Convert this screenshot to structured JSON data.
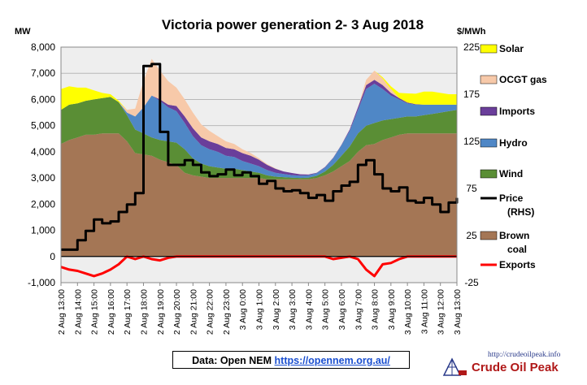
{
  "chart_data": {
    "type": "area",
    "title": "Victoria  power generation  2- 3 Aug 2018",
    "ylabel_left": "MW",
    "ylabel_right": "$/MWh",
    "ylim_left": [
      -1000,
      8000
    ],
    "yticks_left": [
      "8,000",
      "7,000",
      "6,000",
      "5,000",
      "4,000",
      "3,000",
      "2,000",
      "1,000",
      "0",
      "-1,000"
    ],
    "ylim_right": [
      -25,
      225
    ],
    "yticks_right": [
      "225",
      "175",
      "125",
      "75",
      "25",
      "-25"
    ],
    "x_start_hour": 13,
    "x_end_hour": 37,
    "xtick_labels": [
      "2 Aug 13:00",
      "2 Aug 14:00",
      "2 Aug 15:00",
      "2 Aug 16:00",
      "2 Aug 17:00",
      "2 Aug 18:00",
      "2 Aug 19:00",
      "2 Aug 20:00",
      "2 Aug 21:00",
      "2 Aug 22:00",
      "2 Aug 23:00",
      "3 Aug 0:00",
      "3 Aug 1:00",
      "3 Aug 2:00",
      "3 Aug 3:00",
      "3 Aug 4:00",
      "3 Aug 5:00",
      "3 Aug 6:00",
      "3 Aug 7:00",
      "3 Aug 8:00",
      "3 Aug 9:00",
      "3 Aug 10:00",
      "3 Aug 11:00",
      "3 Aug 12:00",
      "3 Aug 13:00"
    ],
    "grid": true,
    "legend_position": "right",
    "x": [
      13,
      13.5,
      14,
      14.5,
      15,
      15.5,
      16,
      16.5,
      17,
      17.5,
      18,
      18.5,
      19,
      19.5,
      20,
      20.5,
      21,
      21.5,
      22,
      22.5,
      23,
      23.5,
      24,
      24.5,
      25,
      25.5,
      26,
      26.5,
      27,
      27.5,
      28,
      28.5,
      29,
      29.5,
      30,
      30.5,
      31,
      31.5,
      32,
      32.5,
      33,
      33.5,
      34,
      34.5,
      35,
      35.5,
      36,
      36.5,
      37
    ],
    "series": [
      {
        "name": "Brown coal",
        "color": "#a47655",
        "kind": "area",
        "values": [
          4300,
          4450,
          4550,
          4650,
          4650,
          4700,
          4700,
          4700,
          4400,
          3950,
          3900,
          3850,
          3700,
          3600,
          3500,
          3200,
          3100,
          3050,
          3000,
          3000,
          3000,
          3000,
          3000,
          3000,
          3000,
          2950,
          2950,
          2950,
          2950,
          2950,
          2950,
          3000,
          3100,
          3250,
          3450,
          3650,
          4000,
          4250,
          4300,
          4450,
          4550,
          4650,
          4700,
          4700,
          4700,
          4700,
          4700,
          4700,
          4700
        ]
      },
      {
        "name": "Wind",
        "color": "#5a8e35",
        "kind": "area",
        "values": [
          1300,
          1350,
          1300,
          1300,
          1350,
          1350,
          1400,
          1200,
          1000,
          900,
          800,
          700,
          750,
          800,
          850,
          900,
          650,
          500,
          450,
          400,
          350,
          350,
          300,
          250,
          200,
          150,
          100,
          80,
          60,
          50,
          60,
          80,
          150,
          250,
          400,
          550,
          700,
          750,
          800,
          750,
          700,
          650,
          650,
          650,
          700,
          750,
          800,
          850,
          900
        ]
      },
      {
        "name": "Hydro",
        "color": "#4f87c6",
        "kind": "area",
        "values": [
          0,
          0,
          0,
          0,
          0,
          0,
          0,
          0,
          100,
          500,
          1000,
          1600,
          1500,
          1300,
          1200,
          1000,
          850,
          700,
          650,
          600,
          500,
          450,
          350,
          300,
          250,
          200,
          150,
          120,
          100,
          90,
          90,
          100,
          150,
          250,
          400,
          600,
          900,
          1400,
          1500,
          1200,
          900,
          700,
          500,
          450,
          400,
          350,
          300,
          250,
          200
        ]
      },
      {
        "name": "Imports",
        "color": "#6a3e9a",
        "kind": "area",
        "values": [
          0,
          0,
          0,
          0,
          0,
          0,
          0,
          0,
          0,
          0,
          0,
          0,
          50,
          100,
          200,
          250,
          300,
          300,
          300,
          300,
          300,
          300,
          300,
          300,
          250,
          200,
          150,
          100,
          80,
          50,
          30,
          20,
          20,
          20,
          20,
          50,
          100,
          150,
          150,
          150,
          100,
          50,
          30,
          20,
          0,
          0,
          0,
          0,
          0
        ]
      },
      {
        "name": "OCGT gas",
        "color": "#f7c9a9",
        "kind": "area",
        "values": [
          0,
          0,
          0,
          0,
          0,
          0,
          0,
          0,
          100,
          300,
          1000,
          1400,
          1100,
          900,
          700,
          650,
          600,
          500,
          400,
          300,
          250,
          200,
          150,
          100,
          50,
          30,
          20,
          0,
          0,
          0,
          0,
          0,
          0,
          0,
          0,
          0,
          0,
          200,
          350,
          250,
          150,
          0,
          0,
          0,
          0,
          0,
          0,
          0,
          0
        ]
      },
      {
        "name": "Solar",
        "color": "#ffff00",
        "kind": "area",
        "values": [
          800,
          700,
          600,
          500,
          350,
          200,
          100,
          50,
          0,
          0,
          0,
          0,
          0,
          0,
          0,
          0,
          0,
          0,
          0,
          0,
          0,
          0,
          0,
          0,
          0,
          0,
          0,
          0,
          0,
          0,
          0,
          0,
          0,
          0,
          0,
          0,
          0,
          0,
          0,
          50,
          100,
          200,
          350,
          400,
          500,
          500,
          450,
          400,
          400
        ]
      },
      {
        "name": "Exports",
        "color": "#ff0000",
        "kind": "line",
        "axis": "left",
        "values": [
          -400,
          -500,
          -550,
          -650,
          -750,
          -650,
          -500,
          -300,
          0,
          -100,
          0,
          -100,
          -150,
          -50,
          0,
          0,
          0,
          0,
          0,
          0,
          0,
          0,
          0,
          0,
          0,
          0,
          0,
          0,
          0,
          0,
          0,
          0,
          0,
          -100,
          -50,
          0,
          -100,
          -500,
          -750,
          -300,
          -250,
          -100,
          0,
          0,
          0,
          0,
          0,
          0,
          0
        ]
      },
      {
        "name": "Price (RHS)",
        "color": "#000000",
        "kind": "line",
        "axis": "right",
        "values": [
          10,
          10,
          20,
          30,
          42,
          38,
          40,
          50,
          58,
          70,
          205,
          207,
          135,
          100,
          100,
          105,
          100,
          92,
          88,
          90,
          95,
          89,
          92,
          88,
          80,
          83,
          75,
          72,
          73,
          70,
          65,
          68,
          62,
          72,
          78,
          82,
          100,
          105,
          90,
          75,
          72,
          76,
          62,
          60,
          65,
          58,
          50,
          60,
          65
        ]
      }
    ],
    "legend": [
      {
        "label": "Solar",
        "color": "#ffff00",
        "type": "box"
      },
      {
        "label": "OCGT gas",
        "color": "#f7c9a9",
        "type": "box"
      },
      {
        "label": "Imports",
        "color": "#6a3e9a",
        "type": "box"
      },
      {
        "label": "Hydro",
        "color": "#4f87c6",
        "type": "box"
      },
      {
        "label": "Wind",
        "color": "#5a8e35",
        "type": "box"
      },
      {
        "label": "Price",
        "label2": "(RHS)",
        "color": "#000000",
        "type": "line"
      },
      {
        "label": "Brown",
        "label2": "coal",
        "color": "#a47655",
        "type": "box"
      },
      {
        "label": "Exports",
        "color": "#ff0000",
        "type": "line"
      }
    ]
  },
  "source": {
    "label": "Data: Open NEM ",
    "link": "https://opennem.org.au/"
  },
  "logo": {
    "url": "http://crudeoilpeak.info",
    "name": "Crude Oil Peak"
  }
}
